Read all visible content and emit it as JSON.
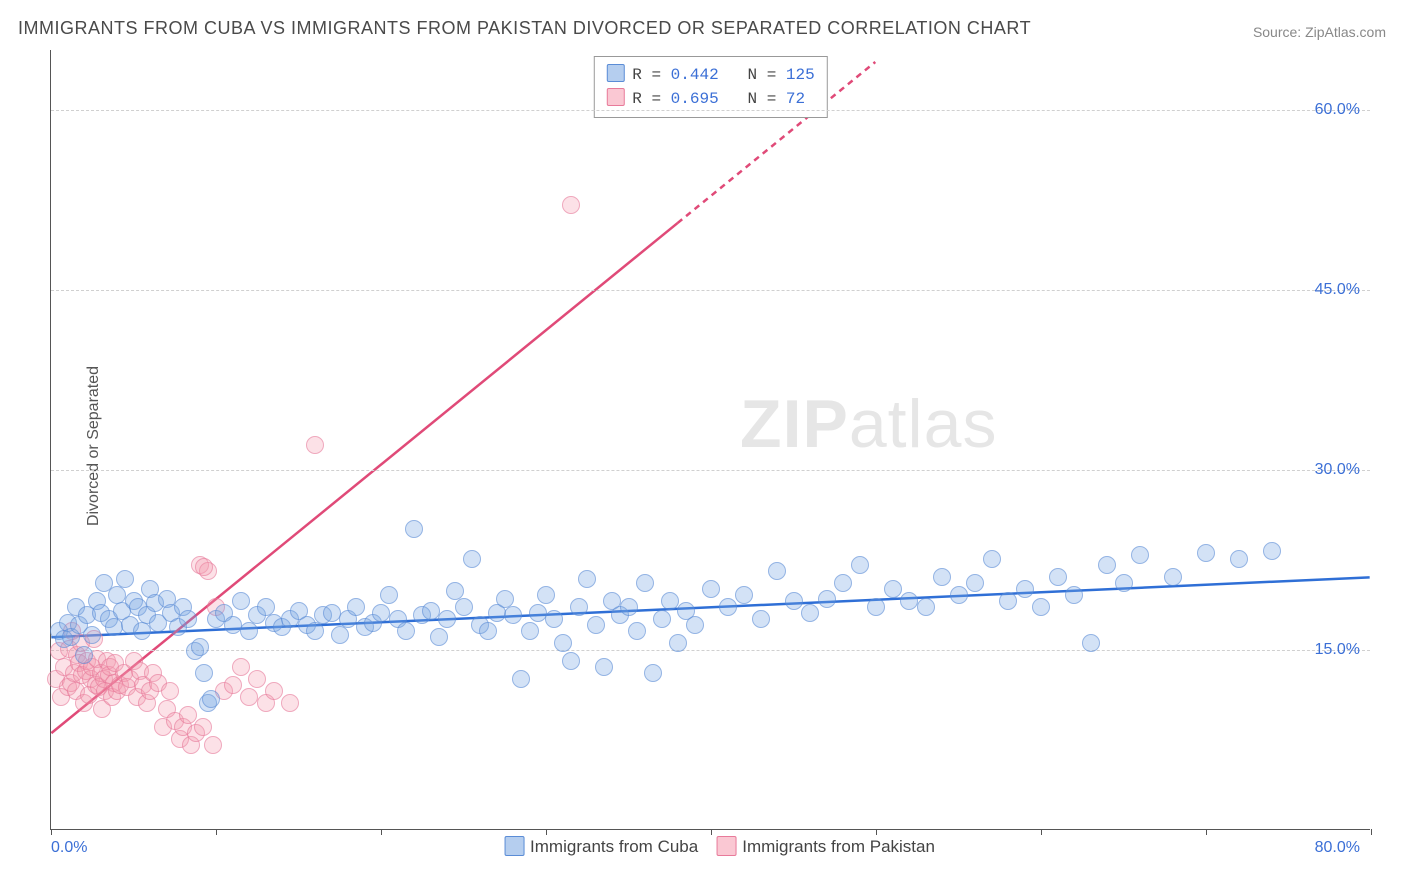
{
  "title": "IMMIGRANTS FROM CUBA VS IMMIGRANTS FROM PAKISTAN DIVORCED OR SEPARATED CORRELATION CHART",
  "source": "Source: ZipAtlas.com",
  "watermark_bold": "ZIP",
  "watermark_rest": "atlas",
  "ylabel": "Divorced or Separated",
  "xlim": [
    0,
    80
  ],
  "ylim": [
    0,
    65
  ],
  "y_ticks": [
    15.0,
    30.0,
    45.0,
    60.0
  ],
  "x_ticks_minor": [
    0,
    10,
    20,
    30,
    40,
    50,
    60,
    70,
    80
  ],
  "x_tick_left": "0.0%",
  "x_tick_right": "80.0%",
  "colors": {
    "blue_fill": "rgba(120,165,225,0.5)",
    "blue_stroke": "#5a8cd6",
    "blue_line": "#2f6fd6",
    "pink_fill": "rgba(245,155,175,0.45)",
    "pink_stroke": "#e87a9a",
    "pink_line": "#e04a78",
    "grid": "#d0d0d0",
    "axis_text": "#3b6fd6",
    "title_text": "#4a4a4a"
  },
  "legend_top": [
    {
      "swatch_fill": "rgba(120,165,225,0.55)",
      "swatch_stroke": "#5a8cd6",
      "r_label": "R =",
      "r_val": "0.442",
      "n_label": "N =",
      "n_val": "125"
    },
    {
      "swatch_fill": "rgba(245,155,175,0.55)",
      "swatch_stroke": "#e87a9a",
      "r_label": "R =",
      "r_val": "0.695",
      "n_label": "N =",
      "n_val": " 72"
    }
  ],
  "legend_bottom": [
    {
      "swatch_fill": "rgba(120,165,225,0.55)",
      "swatch_stroke": "#5a8cd6",
      "label": "Immigrants from Cuba"
    },
    {
      "swatch_fill": "rgba(245,155,175,0.55)",
      "swatch_stroke": "#e87a9a",
      "label": "Immigrants from Pakistan"
    }
  ],
  "series": {
    "cuba": {
      "color": "blue",
      "trend": {
        "x1": 0,
        "y1": 16.0,
        "x2": 80,
        "y2": 21.0,
        "dashed": false
      },
      "points": [
        [
          0.5,
          16.5
        ],
        [
          0.8,
          15.8
        ],
        [
          1.0,
          17.2
        ],
        [
          1.2,
          16.0
        ],
        [
          1.5,
          18.5
        ],
        [
          1.7,
          17.0
        ],
        [
          2.0,
          14.5
        ],
        [
          2.2,
          17.8
        ],
        [
          2.5,
          16.2
        ],
        [
          2.8,
          19.0
        ],
        [
          3.0,
          18.0
        ],
        [
          3.2,
          20.5
        ],
        [
          3.5,
          17.5
        ],
        [
          3.8,
          16.8
        ],
        [
          4.0,
          19.5
        ],
        [
          4.3,
          18.2
        ],
        [
          4.5,
          20.8
        ],
        [
          4.8,
          17.0
        ],
        [
          5.0,
          19.0
        ],
        [
          5.3,
          18.5
        ],
        [
          5.5,
          16.5
        ],
        [
          5.8,
          17.8
        ],
        [
          6.0,
          20.0
        ],
        [
          6.3,
          18.8
        ],
        [
          6.5,
          17.2
        ],
        [
          7.0,
          19.2
        ],
        [
          7.3,
          18.0
        ],
        [
          7.7,
          16.8
        ],
        [
          8.0,
          18.5
        ],
        [
          8.3,
          17.5
        ],
        [
          8.7,
          14.8
        ],
        [
          9.0,
          15.2
        ],
        [
          9.3,
          13.0
        ],
        [
          9.5,
          10.5
        ],
        [
          9.7,
          10.8
        ],
        [
          10.0,
          17.5
        ],
        [
          10.5,
          18.0
        ],
        [
          11.0,
          17.0
        ],
        [
          11.5,
          19.0
        ],
        [
          12.0,
          16.5
        ],
        [
          12.5,
          17.8
        ],
        [
          13.0,
          18.5
        ],
        [
          13.5,
          17.2
        ],
        [
          14.0,
          16.8
        ],
        [
          14.5,
          17.5
        ],
        [
          15.0,
          18.2
        ],
        [
          15.5,
          17.0
        ],
        [
          16.0,
          16.5
        ],
        [
          16.5,
          17.8
        ],
        [
          17.0,
          18.0
        ],
        [
          17.5,
          16.2
        ],
        [
          18.0,
          17.5
        ],
        [
          18.5,
          18.5
        ],
        [
          19.0,
          16.8
        ],
        [
          19.5,
          17.2
        ],
        [
          20.0,
          18.0
        ],
        [
          20.5,
          19.5
        ],
        [
          21.0,
          17.5
        ],
        [
          21.5,
          16.5
        ],
        [
          22.0,
          25.0
        ],
        [
          22.5,
          17.8
        ],
        [
          23.0,
          18.2
        ],
        [
          23.5,
          16.0
        ],
        [
          24.0,
          17.5
        ],
        [
          24.5,
          19.8
        ],
        [
          25.0,
          18.5
        ],
        [
          25.5,
          22.5
        ],
        [
          26.0,
          17.0
        ],
        [
          26.5,
          16.5
        ],
        [
          27.0,
          18.0
        ],
        [
          27.5,
          19.2
        ],
        [
          28.0,
          17.8
        ],
        [
          28.5,
          12.5
        ],
        [
          29.0,
          16.5
        ],
        [
          29.5,
          18.0
        ],
        [
          30.0,
          19.5
        ],
        [
          30.5,
          17.5
        ],
        [
          31.0,
          15.5
        ],
        [
          31.5,
          14.0
        ],
        [
          32.0,
          18.5
        ],
        [
          32.5,
          20.8
        ],
        [
          33.0,
          17.0
        ],
        [
          33.5,
          13.5
        ],
        [
          34.0,
          19.0
        ],
        [
          34.5,
          17.8
        ],
        [
          35.0,
          18.5
        ],
        [
          35.5,
          16.5
        ],
        [
          36.0,
          20.5
        ],
        [
          36.5,
          13.0
        ],
        [
          37.0,
          17.5
        ],
        [
          37.5,
          19.0
        ],
        [
          38.0,
          15.5
        ],
        [
          38.5,
          18.2
        ],
        [
          39.0,
          17.0
        ],
        [
          40.0,
          20.0
        ],
        [
          41.0,
          18.5
        ],
        [
          42.0,
          19.5
        ],
        [
          43.0,
          17.5
        ],
        [
          44.0,
          21.5
        ],
        [
          45.0,
          19.0
        ],
        [
          46.0,
          18.0
        ],
        [
          47.0,
          19.2
        ],
        [
          48.0,
          20.5
        ],
        [
          49.0,
          22.0
        ],
        [
          50.0,
          18.5
        ],
        [
          51.0,
          20.0
        ],
        [
          52.0,
          19.0
        ],
        [
          53.0,
          18.5
        ],
        [
          54.0,
          21.0
        ],
        [
          55.0,
          19.5
        ],
        [
          56.0,
          20.5
        ],
        [
          57.0,
          22.5
        ],
        [
          58.0,
          19.0
        ],
        [
          59.0,
          20.0
        ],
        [
          60.0,
          18.5
        ],
        [
          61.0,
          21.0
        ],
        [
          62.0,
          19.5
        ],
        [
          63.0,
          15.5
        ],
        [
          64.0,
          22.0
        ],
        [
          65.0,
          20.5
        ],
        [
          66.0,
          22.8
        ],
        [
          68.0,
          21.0
        ],
        [
          70.0,
          23.0
        ],
        [
          72.0,
          22.5
        ],
        [
          74.0,
          23.2
        ]
      ]
    },
    "pakistan": {
      "color": "pink",
      "trend": {
        "x1": 0,
        "y1": 8.0,
        "x2": 50,
        "y2": 64.0,
        "dashed_from_x": 38
      },
      "points": [
        [
          0.3,
          12.5
        ],
        [
          0.5,
          14.8
        ],
        [
          0.6,
          11.0
        ],
        [
          0.8,
          13.5
        ],
        [
          1.0,
          11.8
        ],
        [
          1.1,
          15.0
        ],
        [
          1.2,
          12.2
        ],
        [
          1.3,
          16.5
        ],
        [
          1.4,
          13.0
        ],
        [
          1.5,
          11.5
        ],
        [
          1.6,
          14.5
        ],
        [
          1.7,
          13.8
        ],
        [
          1.8,
          15.5
        ],
        [
          1.9,
          12.8
        ],
        [
          2.0,
          10.5
        ],
        [
          2.1,
          13.2
        ],
        [
          2.2,
          14.0
        ],
        [
          2.3,
          11.2
        ],
        [
          2.4,
          12.5
        ],
        [
          2.5,
          13.5
        ],
        [
          2.6,
          15.8
        ],
        [
          2.7,
          12.0
        ],
        [
          2.8,
          14.2
        ],
        [
          2.9,
          11.8
        ],
        [
          3.0,
          13.0
        ],
        [
          3.1,
          10.0
        ],
        [
          3.2,
          12.5
        ],
        [
          3.3,
          11.5
        ],
        [
          3.4,
          14.0
        ],
        [
          3.5,
          12.8
        ],
        [
          3.6,
          13.5
        ],
        [
          3.7,
          11.0
        ],
        [
          3.8,
          12.2
        ],
        [
          3.9,
          13.8
        ],
        [
          4.0,
          11.5
        ],
        [
          4.2,
          12.0
        ],
        [
          4.4,
          13.0
        ],
        [
          4.6,
          11.8
        ],
        [
          4.8,
          12.5
        ],
        [
          5.0,
          14.0
        ],
        [
          5.2,
          11.0
        ],
        [
          5.4,
          13.2
        ],
        [
          5.6,
          12.0
        ],
        [
          5.8,
          10.5
        ],
        [
          6.0,
          11.5
        ],
        [
          6.2,
          13.0
        ],
        [
          6.5,
          12.2
        ],
        [
          6.8,
          8.5
        ],
        [
          7.0,
          10.0
        ],
        [
          7.2,
          11.5
        ],
        [
          7.5,
          9.0
        ],
        [
          7.8,
          7.5
        ],
        [
          8.0,
          8.5
        ],
        [
          8.3,
          9.5
        ],
        [
          8.5,
          7.0
        ],
        [
          8.8,
          8.0
        ],
        [
          9.0,
          22.0
        ],
        [
          9.2,
          8.5
        ],
        [
          9.5,
          21.5
        ],
        [
          9.8,
          7.0
        ],
        [
          10.0,
          18.5
        ],
        [
          10.5,
          11.5
        ],
        [
          11.0,
          12.0
        ],
        [
          11.5,
          13.5
        ],
        [
          12.0,
          11.0
        ],
        [
          12.5,
          12.5
        ],
        [
          13.0,
          10.5
        ],
        [
          13.5,
          11.5
        ],
        [
          14.5,
          10.5
        ],
        [
          16.0,
          32.0
        ],
        [
          31.5,
          52.0
        ],
        [
          9.3,
          21.8
        ]
      ]
    }
  }
}
